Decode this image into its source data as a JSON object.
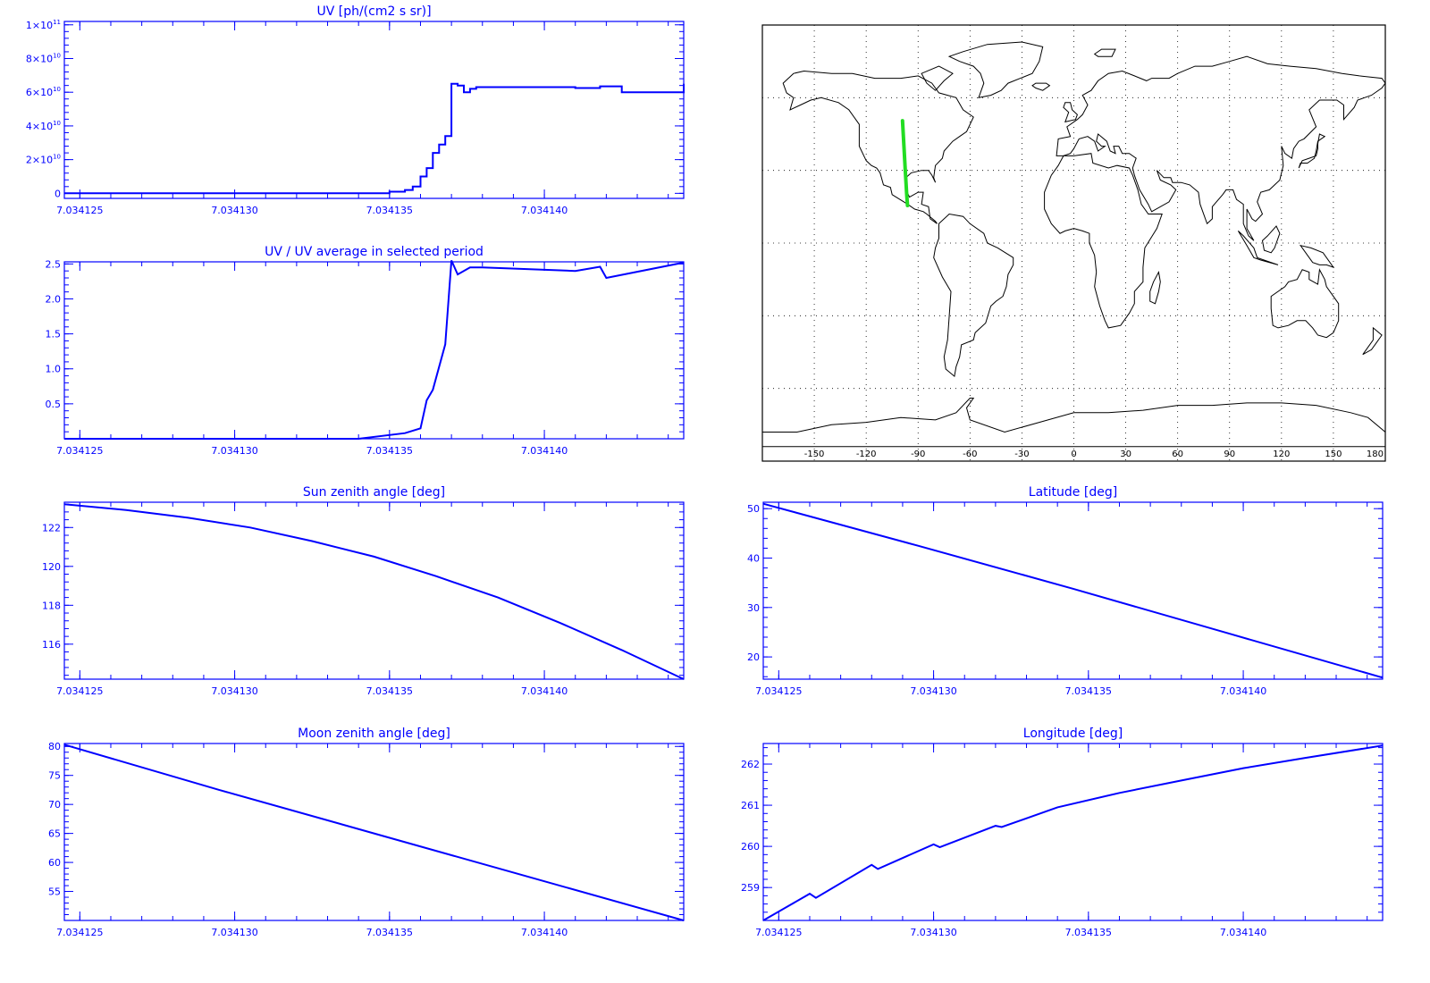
{
  "chart_data": [
    {
      "id": "uv",
      "type": "line",
      "title": "UV [ph/(cm2 s sr)]",
      "xlabel": "",
      "ylabel": "",
      "xlim": [
        7.0341245,
        7.0341445
      ],
      "ylim": [
        -3000000000.0,
        102000000000.0
      ],
      "x_ticks": [
        7.034125,
        7.03413,
        7.034135,
        7.03414
      ],
      "x_tick_labels": [
        "7.034125",
        "7.034130",
        "7.034135",
        "7.034140"
      ],
      "y_ticks": [
        0,
        20000000000.0,
        40000000000.0,
        60000000000.0,
        80000000000.0,
        100000000000.0
      ],
      "y_tick_labels": [
        {
          "mant": "0",
          "exp": ""
        },
        {
          "mant": "2×10",
          "exp": "10"
        },
        {
          "mant": "4×10",
          "exp": "10"
        },
        {
          "mant": "6×10",
          "exp": "10"
        },
        {
          "mant": "8×10",
          "exp": "10"
        },
        {
          "mant": "1×10",
          "exp": "11"
        }
      ],
      "step": true,
      "x": [
        7.0341245,
        7.034134,
        7.034135,
        7.0341355,
        7.03413575,
        7.034136,
        7.0341362,
        7.0341364,
        7.0341366,
        7.0341368,
        7.034137,
        7.0341372,
        7.0341374,
        7.0341376,
        7.0341378,
        7.034138,
        7.034141,
        7.0341418,
        7.0341425,
        7.0341445
      ],
      "y": [
        0,
        0,
        1000000000.0,
        2000000000.0,
        4000000000.0,
        10000000000.0,
        15000000000.0,
        24000000000.0,
        29000000000.0,
        34000000000.0,
        65000000000.0,
        64000000000.0,
        60000000000.0,
        62000000000.0,
        63000000000.0,
        63000000000.0,
        62500000000.0,
        63500000000.0,
        60000000000.0,
        65000000000.0
      ]
    },
    {
      "id": "uv_ratio",
      "type": "line",
      "title": "UV / UV average in selected period",
      "xlabel": "",
      "ylabel": "",
      "xlim": [
        7.0341245,
        7.0341445
      ],
      "ylim": [
        0,
        2.53
      ],
      "x_ticks": [
        7.034125,
        7.03413,
        7.034135,
        7.03414
      ],
      "x_tick_labels": [
        "7.034125",
        "7.034130",
        "7.034135",
        "7.034140"
      ],
      "y_ticks": [
        0.5,
        1.0,
        1.5,
        2.0,
        2.5
      ],
      "y_tick_labels": [
        "0.5",
        "1.0",
        "1.5",
        "2.0",
        "2.5"
      ],
      "step": false,
      "x": [
        7.0341245,
        7.034134,
        7.0341355,
        7.034136,
        7.0341362,
        7.0341364,
        7.0341368,
        7.034137,
        7.0341372,
        7.0341376,
        7.034138,
        7.034141,
        7.0341418,
        7.034142,
        7.0341445
      ],
      "y": [
        0,
        0,
        0.08,
        0.15,
        0.55,
        0.7,
        1.35,
        2.55,
        2.35,
        2.45,
        2.45,
        2.4,
        2.46,
        2.3,
        2.52
      ]
    },
    {
      "id": "sun",
      "type": "line",
      "title": "Sun zenith angle [deg]",
      "xlabel": "",
      "ylabel": "",
      "xlim": [
        7.0341245,
        7.0341445
      ],
      "ylim": [
        114.2,
        123.3
      ],
      "x_ticks": [
        7.034125,
        7.03413,
        7.034135,
        7.03414
      ],
      "x_tick_labels": [
        "7.034125",
        "7.034130",
        "7.034135",
        "7.034140"
      ],
      "y_ticks": [
        116,
        118,
        120,
        122
      ],
      "y_tick_labels": [
        "116",
        "118",
        "120",
        "122"
      ],
      "step": false,
      "x": [
        7.0341245,
        7.0341265,
        7.0341285,
        7.0341305,
        7.0341325,
        7.0341345,
        7.0341365,
        7.0341385,
        7.0341405,
        7.0341425,
        7.0341445
      ],
      "y": [
        123.2,
        122.9,
        122.5,
        122.0,
        121.3,
        120.5,
        119.5,
        118.4,
        117.1,
        115.7,
        114.2
      ]
    },
    {
      "id": "moon",
      "type": "line",
      "title": "Moon zenith angle [deg]",
      "xlabel": "",
      "ylabel": "",
      "xlim": [
        7.0341245,
        7.0341445
      ],
      "ylim": [
        50.0,
        80.5
      ],
      "x_ticks": [
        7.034125,
        7.03413,
        7.034135,
        7.03414
      ],
      "x_tick_labels": [
        "7.034125",
        "7.034130",
        "7.034135",
        "7.034140"
      ],
      "y_ticks": [
        55,
        60,
        65,
        70,
        75,
        80
      ],
      "y_tick_labels": [
        "55",
        "60",
        "65",
        "70",
        "75",
        "80"
      ],
      "step": false,
      "x": [
        7.0341245,
        7.0341295,
        7.0341345,
        7.0341395,
        7.0341445
      ],
      "y": [
        80.3,
        72.5,
        65.0,
        57.5,
        50.0
      ]
    },
    {
      "id": "lat",
      "type": "line",
      "title": "Latitude [deg]",
      "xlabel": "",
      "ylabel": "",
      "xlim": [
        7.0341245,
        7.0341445
      ],
      "ylim": [
        15.5,
        51.3
      ],
      "x_ticks": [
        7.034125,
        7.03413,
        7.034135,
        7.03414
      ],
      "x_tick_labels": [
        "7.034125",
        "7.034130",
        "7.034135",
        "7.034140"
      ],
      "y_ticks": [
        20,
        30,
        40,
        50
      ],
      "y_tick_labels": [
        "20",
        "30",
        "40",
        "50"
      ],
      "step": false,
      "x": [
        7.0341245,
        7.0341295,
        7.0341345,
        7.0341395,
        7.0341445
      ],
      "y": [
        51.0,
        42.5,
        33.8,
        24.8,
        15.8
      ]
    },
    {
      "id": "lon",
      "type": "line",
      "title": "Longitude [deg]",
      "xlabel": "",
      "ylabel": "",
      "xlim": [
        7.0341245,
        7.0341445
      ],
      "ylim": [
        258.2,
        262.5
      ],
      "x_ticks": [
        7.034125,
        7.03413,
        7.034135,
        7.03414
      ],
      "x_tick_labels": [
        "7.034125",
        "7.034130",
        "7.034135",
        "7.034140"
      ],
      "y_ticks": [
        259,
        260,
        261,
        262
      ],
      "y_tick_labels": [
        "259",
        "260",
        "261",
        "262"
      ],
      "step": false,
      "x": [
        7.0341245,
        7.034126,
        7.0341262,
        7.034128,
        7.0341282,
        7.03413,
        7.0341302,
        7.034132,
        7.0341322,
        7.034134,
        7.034136,
        7.034138,
        7.03414,
        7.034142,
        7.0341445
      ],
      "y": [
        258.2,
        258.85,
        258.75,
        259.55,
        259.45,
        260.05,
        259.98,
        260.5,
        260.47,
        260.95,
        261.3,
        261.6,
        261.9,
        262.15,
        262.45
      ]
    }
  ],
  "map": {
    "x_tick_labels": [
      "-150",
      "-120",
      "-90",
      "-60",
      "-30",
      "0",
      "30",
      "60",
      "90",
      "120",
      "150",
      "180"
    ],
    "track_color": "#22dd22",
    "track": [
      [
        -99,
        50.5
      ],
      [
        -98.2,
        40
      ],
      [
        -97.4,
        30
      ],
      [
        -96.6,
        20
      ],
      [
        -96.1,
        15.5
      ]
    ]
  },
  "colors": {
    "axes": "#0000ff",
    "series": "#0000ff",
    "map_lines": "#000000",
    "grid": "#000000"
  }
}
